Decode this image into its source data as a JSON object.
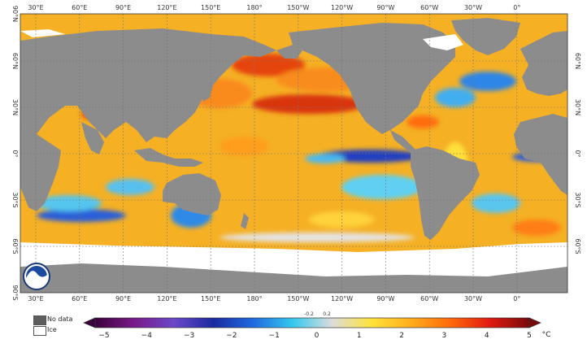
{
  "map": {
    "lon_labels": [
      "30°E",
      "60°E",
      "90°E",
      "120°E",
      "150°E",
      "180°",
      "150°W",
      "120°W",
      "90°W",
      "60°W",
      "30°W",
      "0°"
    ],
    "lat_labels_left": [
      "90°N",
      "60°N",
      "30°N",
      "0°",
      "30°S",
      "60°S",
      "90°S"
    ],
    "lat_labels_right": [
      "60°N",
      "30°N",
      "0°",
      "30°S",
      "60°S"
    ],
    "colors": {
      "land": "#8c8c8c",
      "ice": "#ffffff",
      "base_ocean": "#f5b024"
    }
  },
  "legend": {
    "no_data": {
      "label": "No data",
      "color": "#5e5e5e"
    },
    "ice": {
      "label": "Ice",
      "color": "#ffffff"
    }
  },
  "colorbar": {
    "ticks": [
      "−5",
      "−4",
      "−3",
      "−2",
      "−1",
      "0",
      "1",
      "2",
      "3",
      "4",
      "5"
    ],
    "small_ticks": [
      "-0.2",
      "0.2"
    ],
    "unit": "°C",
    "stops": [
      "#3b003b",
      "#7a1a8a",
      "#6a49c8",
      "#1a2aa0",
      "#1f6ae0",
      "#33c9ee",
      "#dcdcdc",
      "#ffe33a",
      "#ffad1e",
      "#ff6a0a",
      "#e01a10",
      "#7a0a0a"
    ]
  }
}
